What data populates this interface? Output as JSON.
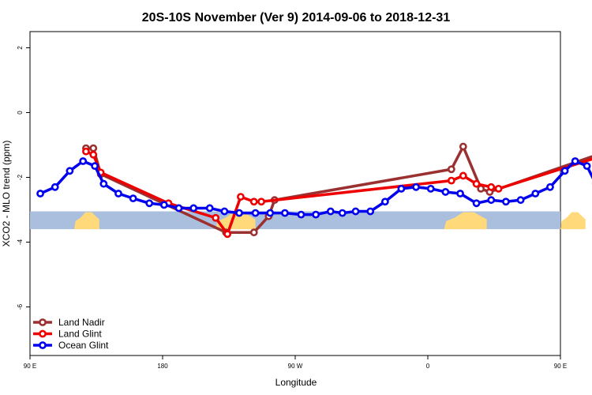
{
  "chart_data": {
    "type": "line",
    "title": "20S-10S November (Ver 9)   2014-09-06 to 2018-12-31",
    "xlabel": "Longitude",
    "ylabel": "XCO2 - MLO trend (ppm)",
    "xlim": [
      90,
      450
    ],
    "ylim": [
      -7.5,
      2.5
    ],
    "x_ticks": [
      {
        "value": 90,
        "label": "90 E"
      },
      {
        "value": 180,
        "label": "180"
      },
      {
        "value": 270,
        "label": "90 W"
      },
      {
        "value": 360,
        "label": "0"
      },
      {
        "value": 450,
        "label": "90 E"
      },
      {
        "value": 540,
        "label": "180"
      }
    ],
    "y_ticks": [
      {
        "value": 2,
        "label": "2"
      },
      {
        "value": 0,
        "label": "0"
      },
      {
        "value": -2,
        "label": "-2"
      },
      {
        "value": -4,
        "label": "-4"
      },
      {
        "value": -6,
        "label": "-6"
      }
    ],
    "legend_position": "bottom-left",
    "colors": {
      "land_nadir": "#9b3030",
      "land_glint": "#ee0000",
      "ocean_glint": "#0000ee",
      "ocean_band": "#aabfdd",
      "land_band": "#ffd97a"
    },
    "surface_band": {
      "y_top": -3.05,
      "y_bottom": -3.6
    },
    "land_regions": [
      [
        120,
        137
      ],
      [
        216,
        243
      ],
      [
        371,
        400
      ],
      [
        450,
        467
      ]
    ],
    "series": [
      {
        "name": "Land Nadir",
        "color_key": "land_nadir",
        "points": [
          [
            128,
            -1.1
          ],
          [
            133,
            -1.1
          ],
          [
            138,
            -1.9
          ],
          [
            223,
            -3.7
          ],
          [
            242,
            -3.7
          ],
          [
            252,
            -3.2
          ],
          [
            256,
            -2.7
          ],
          [
            376,
            -1.75
          ],
          [
            384,
            -1.05
          ],
          [
            396,
            -2.35
          ],
          [
            402,
            -2.45
          ],
          [
            488,
            -1.1
          ],
          [
            493,
            -1.1
          ],
          [
            498,
            -1.9
          ]
        ]
      },
      {
        "name": "Land Glint",
        "color_key": "land_glint",
        "points": [
          [
            128,
            -1.2
          ],
          [
            133,
            -1.3
          ],
          [
            138,
            -1.85
          ],
          [
            184,
            -2.8
          ],
          [
            216,
            -3.25
          ],
          [
            224,
            -3.75
          ],
          [
            233,
            -2.6
          ],
          [
            242,
            -2.75
          ],
          [
            247,
            -2.75
          ],
          [
            376,
            -2.1
          ],
          [
            384,
            -1.95
          ],
          [
            393,
            -2.2
          ],
          [
            403,
            -2.3
          ],
          [
            408,
            -2.35
          ],
          [
            488,
            -1.2
          ],
          [
            493,
            -1.3
          ],
          [
            498,
            -1.85
          ]
        ]
      },
      {
        "name": "Ocean Glint",
        "color_key": "ocean_glint",
        "points": [
          [
            97,
            -2.5
          ],
          [
            107,
            -2.3
          ],
          [
            117,
            -1.8
          ],
          [
            126,
            -1.5
          ],
          [
            134,
            -1.65
          ],
          [
            140,
            -2.2
          ],
          [
            150,
            -2.5
          ],
          [
            160,
            -2.65
          ],
          [
            171,
            -2.8
          ],
          [
            181,
            -2.85
          ],
          [
            191,
            -2.95
          ],
          [
            201,
            -2.95
          ],
          [
            212,
            -2.95
          ],
          [
            222,
            -3.05
          ],
          [
            232,
            -3.1
          ],
          [
            243,
            -3.1
          ],
          [
            253,
            -3.1
          ],
          [
            263,
            -3.1
          ],
          [
            274,
            -3.15
          ],
          [
            284,
            -3.15
          ],
          [
            294,
            -3.05
          ],
          [
            302,
            -3.1
          ],
          [
            311,
            -3.05
          ],
          [
            321,
            -3.05
          ],
          [
            331,
            -2.75
          ],
          [
            342,
            -2.35
          ],
          [
            352,
            -2.3
          ],
          [
            362,
            -2.35
          ],
          [
            372,
            -2.45
          ],
          [
            382,
            -2.5
          ],
          [
            393,
            -2.8
          ],
          [
            403,
            -2.7
          ],
          [
            413,
            -2.75
          ],
          [
            423,
            -2.7
          ],
          [
            433,
            -2.5
          ],
          [
            443,
            -2.3
          ],
          [
            453,
            -1.8
          ],
          [
            460,
            -1.5
          ],
          [
            468,
            -1.65
          ],
          [
            474,
            -2.2
          ],
          [
            484,
            -2.5
          ],
          [
            494,
            -2.65
          ],
          [
            504,
            -2.8
          ]
        ]
      }
    ]
  }
}
